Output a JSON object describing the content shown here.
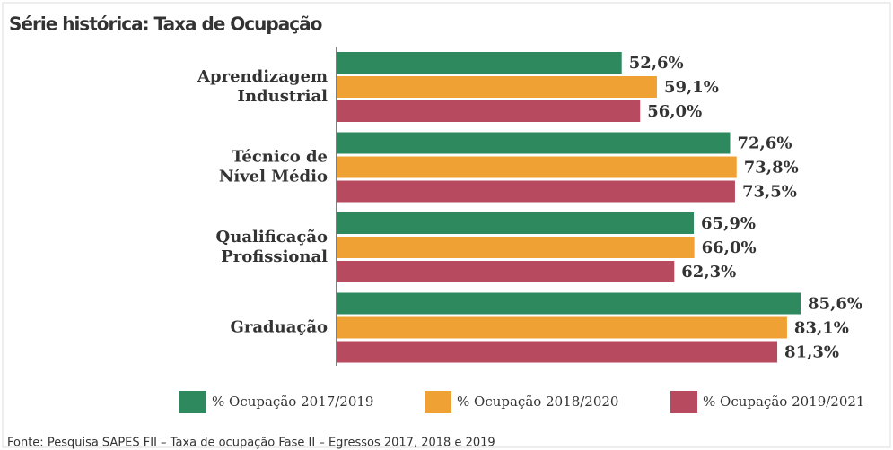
{
  "chart_data": {
    "type": "barh",
    "title": "Série histórica: Taxa de Ocupação",
    "categories": [
      [
        "Aprendizagem",
        "Industrial"
      ],
      [
        "Técnico de",
        "Nível Médio"
      ],
      [
        "Qualificação",
        "Profissional"
      ],
      [
        "Graduação"
      ]
    ],
    "series": [
      {
        "name": "% Ocupação 2017/2019",
        "color": "#2e8a5e",
        "values": [
          52.6,
          72.6,
          65.9,
          85.6
        ],
        "value_labels": [
          "52,6%",
          "72,6%",
          "65,9%",
          "85,6%"
        ]
      },
      {
        "name": "% Ocupação 2018/2020",
        "color": "#f0a134",
        "values": [
          59.1,
          73.8,
          66.0,
          83.1
        ],
        "value_labels": [
          "59,1%",
          "73,8%",
          "66,0%",
          "83,1%"
        ]
      },
      {
        "name": "% Ocupação 2019/2021",
        "color": "#b84a5f",
        "values": [
          56.0,
          73.5,
          62.3,
          81.3
        ],
        "value_labels": [
          "56,0%",
          "73,5%",
          "62,3%",
          "81,3%"
        ]
      }
    ],
    "xlim": [
      0,
      100
    ],
    "source": "Fonte: Pesquisa SAPES FII – Taxa de ocupação Fase II – Egressos 2017, 2018 e 2019"
  }
}
